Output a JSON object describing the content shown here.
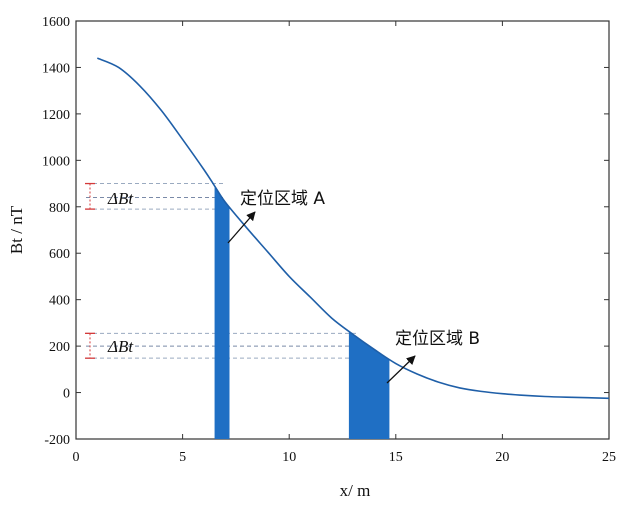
{
  "chart_data": {
    "type": "line",
    "xlabel": "x/ m",
    "ylabel": "Bt / nT",
    "xlim": [
      0,
      25
    ],
    "ylim": [
      -200,
      1600
    ],
    "xticks": [
      0,
      5,
      10,
      15,
      20,
      25
    ],
    "yticks": [
      -200,
      0,
      200,
      400,
      600,
      800,
      1000,
      1200,
      1400,
      1600
    ],
    "grid": false,
    "series": [
      {
        "color": "#1f5fa8",
        "x": [
          1,
          2,
          3,
          4,
          5,
          6,
          6.5,
          7,
          8,
          9,
          10,
          11,
          12,
          13,
          14,
          15,
          16,
          17,
          18,
          19,
          20,
          21,
          22,
          23,
          24,
          25
        ],
        "y": [
          1440,
          1400,
          1320,
          1215,
          1090,
          960,
          890,
          820,
          710,
          605,
          500,
          410,
          320,
          250,
          185,
          125,
          80,
          45,
          20,
          5,
          -5,
          -12,
          -17,
          -20,
          -22,
          -25
        ]
      }
    ],
    "regions": [
      {
        "label": "定位区域 A",
        "x_start": 6.5,
        "x_end": 7.2,
        "color": "#1f6fc4",
        "delta_label": "ΔBt",
        "y_upper": 900,
        "y_center": 840,
        "y_lower": 790
      },
      {
        "label": "定位区域 B",
        "x_start": 12.8,
        "x_end": 14.7,
        "color": "#1f6fc4",
        "delta_label": "ΔBt",
        "y_upper": 255,
        "y_center": 200,
        "y_lower": 148
      }
    ]
  }
}
